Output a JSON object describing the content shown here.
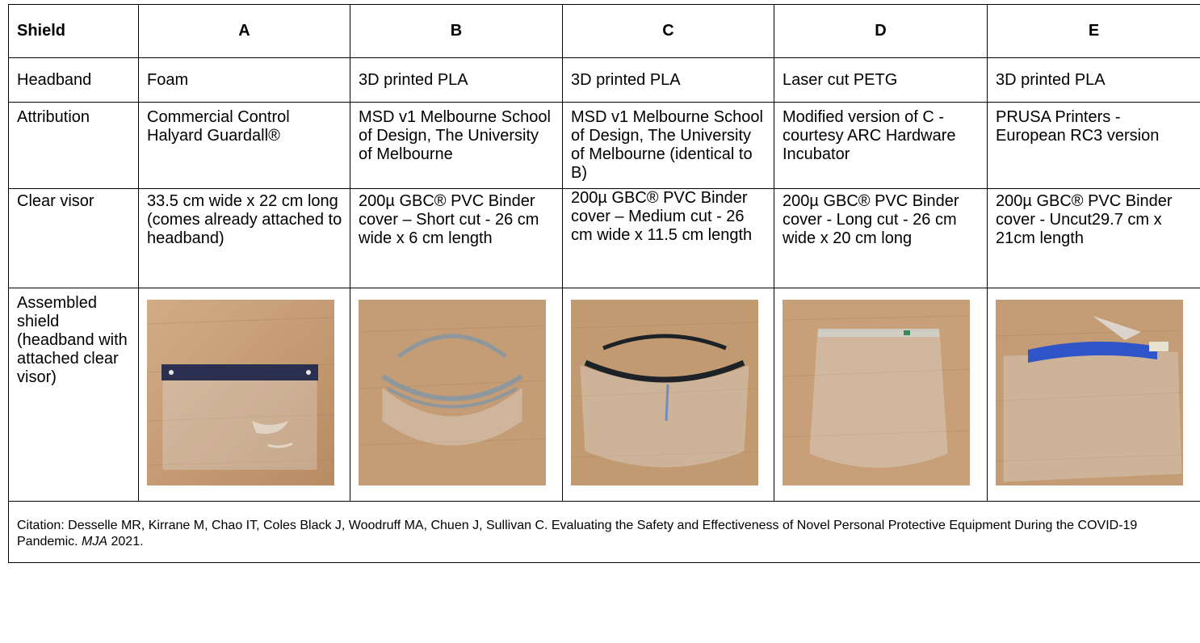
{
  "header": {
    "row_label": "Shield",
    "columns": [
      "A",
      "B",
      "C",
      "D",
      "E"
    ]
  },
  "rows": {
    "headband": {
      "label": "Headband",
      "values": [
        "Foam",
        "3D printed PLA",
        "3D printed PLA",
        "Laser cut PETG",
        "3D printed PLA"
      ]
    },
    "attribution": {
      "label": "Attribution",
      "values": [
        "Commercial Control Halyard Guardall®",
        "MSD v1 Melbourne School of Design, The University of Melbourne",
        "MSD v1 Melbourne School of Design, The University of Melbourne (identical to B)",
        "Modified version of C - courtesy ARC Hardware Incubator",
        "PRUSA Printers - European RC3 version"
      ]
    },
    "visor": {
      "label": "Clear visor",
      "values": [
        "33.5 cm wide x 22 cm long (comes already attached to headband)",
        "200µ GBC® PVC Binder cover – Short cut - 26 cm wide x 6 cm length",
        "200µ GBC® PVC Binder cover – Medium cut - 26 cm wide x 11.5 cm length",
        "200µ GBC® PVC Binder cover - Long cut - 26 cm wide x 20 cm long",
        "200µ GBC® PVC Binder cover - Uncut29.7 cm x 21cm length"
      ]
    },
    "assembled": {
      "label": "Assembled shield (headband with attached clear visor)"
    }
  },
  "citation": {
    "prefix": "Citation:  Desselle MR, Kirrane M, Chao IT, Coles Black J, Woodruff MA, Chuen J, Sullivan C. Evaluating the Safety and Effectiveness of Novel Personal Protective Equipment During the COVID-19 Pandemic. ",
    "journal": "MJA",
    "suffix": " 2021."
  },
  "colors": {
    "table_border": "#000000",
    "wood_light": "#c9a27c",
    "wood_dark": "#a67b57",
    "band_navy": "#2b3050",
    "band_blue": "#2f55c8",
    "frame_grey": "#8e979c",
    "frame_black": "#1d2226"
  }
}
